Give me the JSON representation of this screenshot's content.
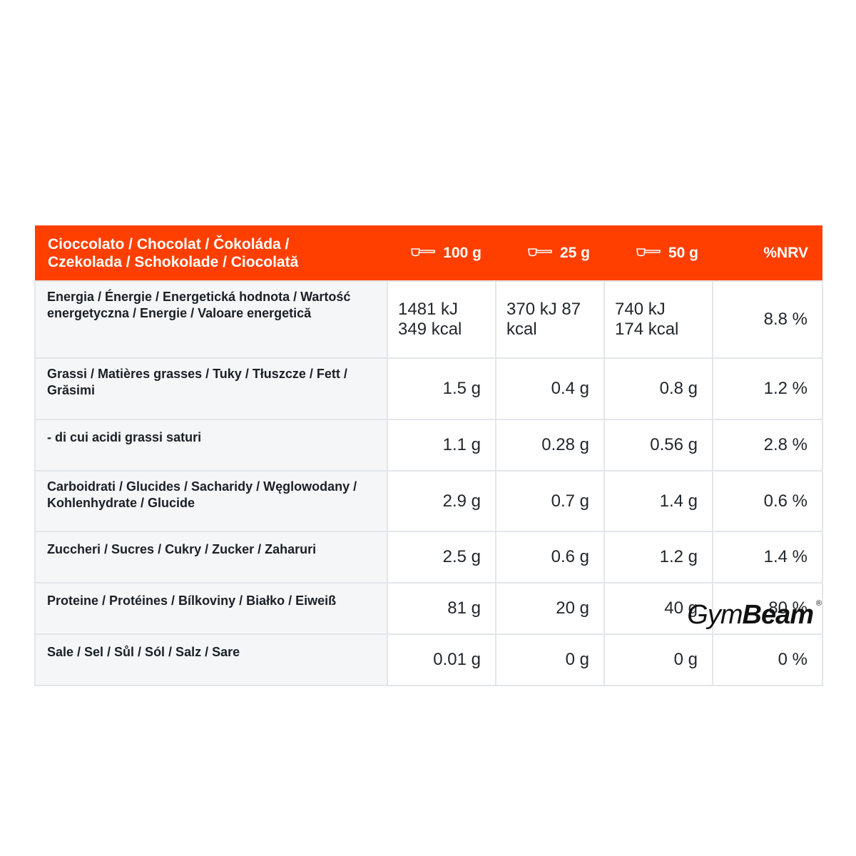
{
  "header": {
    "product_label_line1": "Cioccolato / Chocolat / Čokoláda /",
    "product_label_line2": "Czekolada / Schokolade / Ciocolată",
    "col_100g": "100 g",
    "col_25g": "25 g",
    "col_50g": "50 g",
    "col_nrv": "%NRV",
    "serving_icon": "scoop-icon"
  },
  "rows": [
    {
      "name": "Energia / Énergie / Energetická hodnota / Wartość energetyczna / Energie / Valoare energetică",
      "v100": [
        "1481 kJ",
        "349 kcal"
      ],
      "v25": [
        "370 kJ 87",
        "kcal"
      ],
      "v50": [
        "740 kJ",
        "174 kcal"
      ],
      "nrv": "8.8 %"
    },
    {
      "name": "Grassi / Matières grasses / Tuky / Tłuszcze / Fett / Grăsimi",
      "v100": "1.5 g",
      "v25": "0.4 g",
      "v50": "0.8 g",
      "nrv": "1.2 %"
    },
    {
      "name": "- di cui acidi grassi saturi",
      "v100": "1.1 g",
      "v25": "0.28 g",
      "v50": "0.56 g",
      "nrv": "2.8 %"
    },
    {
      "name": "Carboidrati / Glucides / Sacharidy / Węglowodany / Kohlenhydrate / Glucide",
      "v100": "2.9 g",
      "v25": "0.7 g",
      "v50": "1.4 g",
      "nrv": "0.6 %"
    },
    {
      "name": "Zuccheri / Sucres / Cukry / Zucker / Zaharuri",
      "v100": "2.5 g",
      "v25": "0.6 g",
      "v50": "1.2 g",
      "nrv": "1.4 %"
    },
    {
      "name": "Proteine / Protéines / Bílkoviny / Białko / Eiweiß",
      "v100": "81 g",
      "v25": "20 g",
      "v50": "40 g",
      "nrv": "80 %"
    },
    {
      "name": "Sale / Sel / Sůl / Sól / Salz / Sare",
      "v100": "0.01 g",
      "v25": "0 g",
      "v50": "0 g",
      "nrv": "0 %"
    }
  ],
  "brand": {
    "name_light": "Gym",
    "name_bold": "Beam",
    "registered": "®"
  },
  "colors": {
    "header_bg": "#ff3f00",
    "header_text": "#ffffff",
    "label_cell_bg": "#f5f6f8",
    "grid_line": "#e3e6ea"
  }
}
